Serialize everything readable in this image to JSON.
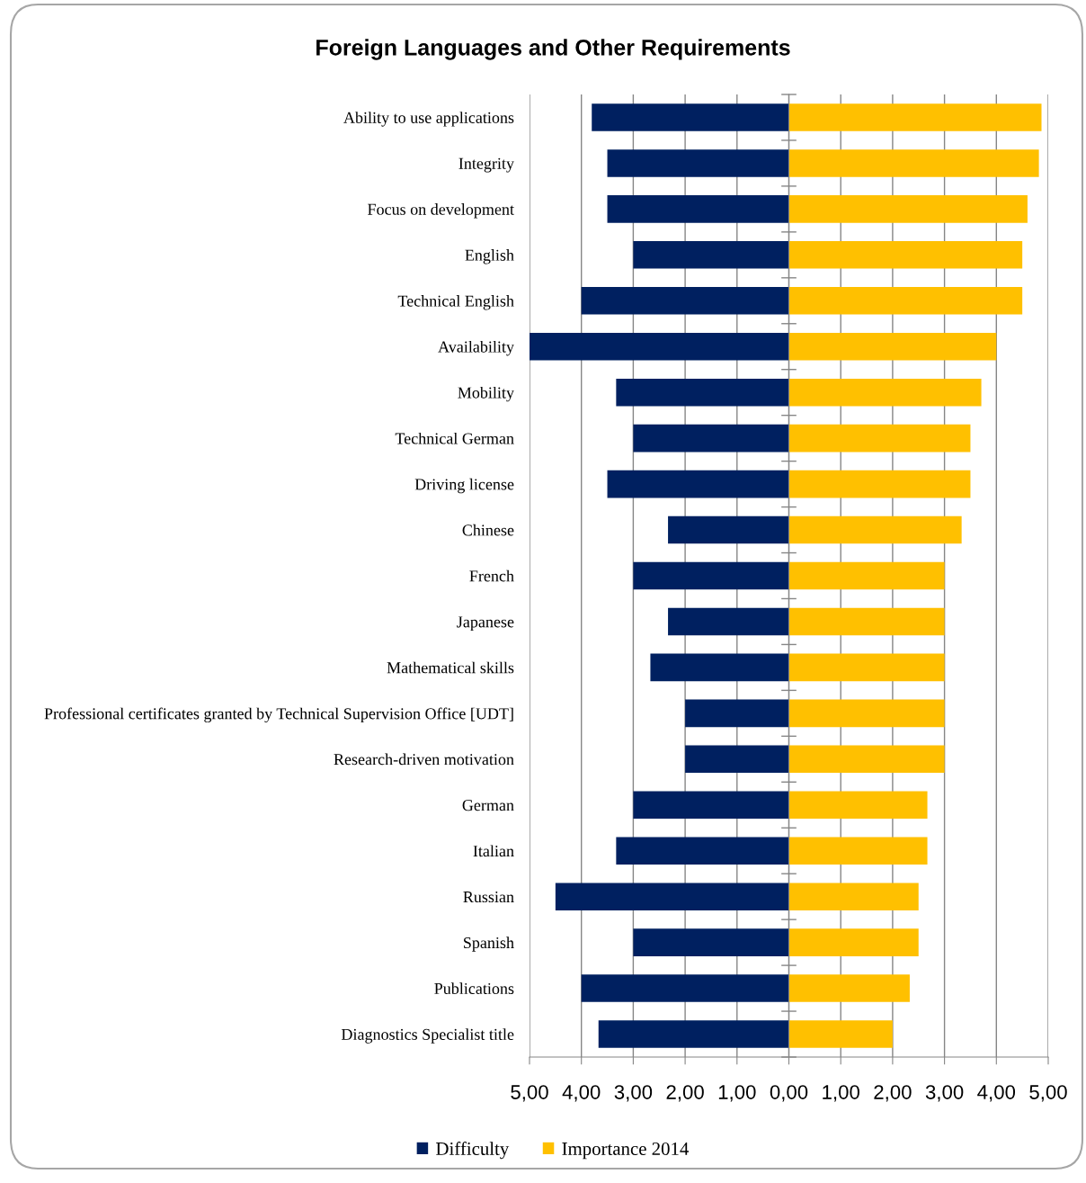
{
  "chart_data": {
    "type": "bar",
    "orientation": "horizontal",
    "stacked": true,
    "title": "Foreign Languages and Other Requirements",
    "categories": [
      "Ability to use applications",
      "Integrity",
      "Focus on development",
      "English",
      "Technical English",
      "Availability",
      "Mobility",
      "Technical German",
      "Driving license",
      "Chinese",
      "French",
      "Japanese",
      "Mathematical skills",
      "Professional certificates granted by Technical Supervision Office [UDT]",
      "Research-driven motivation",
      "German",
      "Italian",
      "Russian",
      "Spanish",
      "Publications",
      "Diagnostics Specialist title"
    ],
    "series": [
      {
        "name": "Difficulty",
        "color": "#002060",
        "values": [
          -3.8,
          -3.5,
          -3.5,
          -3.0,
          -4.0,
          -5.0,
          -3.33,
          -3.0,
          -3.5,
          -2.33,
          -3.0,
          -2.33,
          -2.67,
          -2.0,
          -2.0,
          -3.0,
          -3.33,
          -4.5,
          -3.0,
          -4.0,
          -3.67
        ]
      },
      {
        "name": "Importance 2014",
        "color": "#ffc000",
        "values": [
          4.87,
          4.82,
          4.6,
          4.5,
          4.5,
          4.0,
          3.71,
          3.5,
          3.5,
          3.33,
          3.0,
          3.0,
          3.0,
          3.0,
          3.0,
          2.67,
          2.67,
          2.5,
          2.5,
          2.33,
          2.0
        ]
      }
    ],
    "xlim": [
      -5,
      5
    ],
    "xticks": [
      {
        "value": -5,
        "label": "5,00"
      },
      {
        "value": -4,
        "label": "4,00"
      },
      {
        "value": -3,
        "label": "3,00"
      },
      {
        "value": -2,
        "label": "2,00"
      },
      {
        "value": -1,
        "label": "1,00"
      },
      {
        "value": 0,
        "label": "0,00"
      },
      {
        "value": 1,
        "label": "1,00"
      },
      {
        "value": 2,
        "label": "2,00"
      },
      {
        "value": 3,
        "label": "3,00"
      },
      {
        "value": 4,
        "label": "4,00"
      },
      {
        "value": 5,
        "label": "5,00"
      }
    ],
    "grid": "x",
    "legend": "bottom"
  }
}
